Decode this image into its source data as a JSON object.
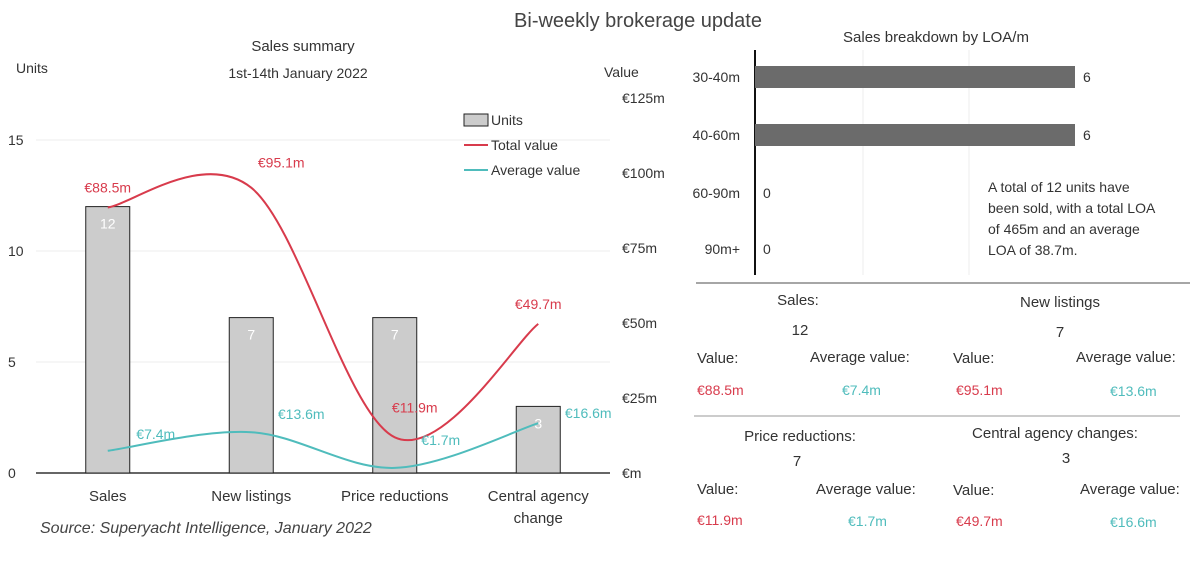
{
  "title": "Bi-weekly brokerage update",
  "source": "Source: Superyacht Intelligence, January 2022",
  "colors": {
    "bar_units": "#cccccc",
    "bar_loa": "#6b6b6b",
    "total_value": "#d83b4c",
    "average_value": "#4fbcbc"
  },
  "chart_data": [
    {
      "type": "bar",
      "title": "Sales summary",
      "subtitle": "1st-14th January 2022",
      "ylabel": "Units",
      "y2label": "Value",
      "categories": [
        "Sales",
        "New listings",
        "Price reductions",
        "Central agency change"
      ],
      "category_lines": [
        [
          "Sales"
        ],
        [
          "New listings"
        ],
        [
          "Price reductions"
        ],
        [
          "Central agency",
          "change"
        ]
      ],
      "ylim": [
        0,
        15
      ],
      "yticks": [
        0,
        5,
        10,
        15
      ],
      "y2lim": [
        0,
        125
      ],
      "y2ticks": [
        "€m",
        "€25m",
        "€50m",
        "€75m",
        "€100m",
        "€125m"
      ],
      "legend": {
        "position": "top-right",
        "entries": [
          "Units",
          "Total value",
          "Average value"
        ]
      },
      "series": [
        {
          "name": "Units",
          "type": "bar",
          "axis": "left",
          "values": [
            12,
            7,
            7,
            3
          ],
          "labels": [
            "12",
            "7",
            "7",
            "3"
          ]
        },
        {
          "name": "Total value",
          "type": "line",
          "axis": "right",
          "values": [
            88.5,
            95.1,
            11.9,
            49.7
          ],
          "labels": [
            "€88.5m",
            "€95.1m",
            "€11.9m",
            "€49.7m"
          ]
        },
        {
          "name": "Average value",
          "type": "line",
          "axis": "right",
          "values": [
            7.4,
            13.6,
            1.7,
            16.6
          ],
          "labels": [
            "€7.4m",
            "€13.6m",
            "€1.7m",
            "€16.6m"
          ]
        }
      ]
    },
    {
      "type": "bar",
      "orientation": "horizontal",
      "title": "Sales breakdown by LOA/m",
      "categories": [
        "30-40m",
        "40-60m",
        "60-90m",
        "90m+"
      ],
      "values": [
        6,
        6,
        0,
        0
      ],
      "labels": [
        "6",
        "6",
        "0",
        "0"
      ],
      "xlim": [
        0,
        6
      ],
      "annotation": "A total of 12 units have been sold, with a total LOA of 465m and an average LOA of 38.7m."
    }
  ],
  "panels": [
    {
      "name": "Sales:",
      "count": "12",
      "value_label": "Value:",
      "value": "€88.5m",
      "avg_label": "Average value:",
      "avg": "€7.4m"
    },
    {
      "name": "New listings",
      "count": "7",
      "value_label": "Value:",
      "value": "€95.1m",
      "avg_label": "Average value:",
      "avg": "€13.6m"
    },
    {
      "name": "Price reductions:",
      "count": "7",
      "value_label": "Value:",
      "value": "€11.9m",
      "avg_label": "Average value:",
      "avg": "€1.7m"
    },
    {
      "name": "Central agency changes:",
      "count": "3",
      "value_label": "Value:",
      "value": "€49.7m",
      "avg_label": "Average value:",
      "avg": "€16.6m"
    }
  ]
}
